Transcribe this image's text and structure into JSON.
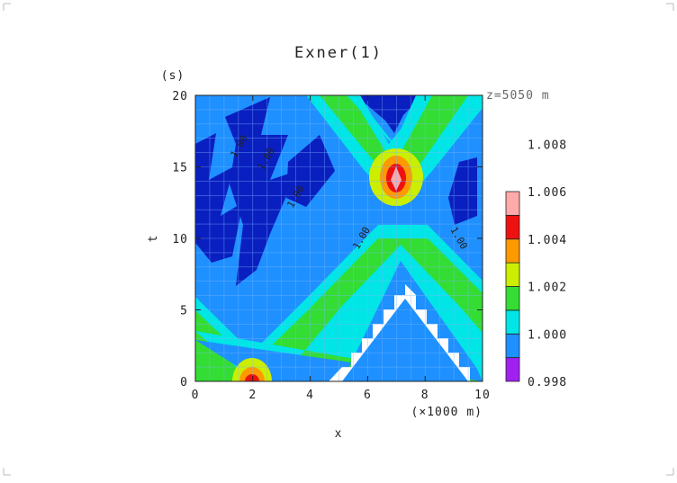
{
  "chart_data": {
    "type": "heatmap",
    "title": "Exner(1)",
    "xlabel": "x",
    "ylabel": "t",
    "x_unit": "(×1000 m)",
    "y_unit": "(s)",
    "annotation": "z=5050 m",
    "xlim": [
      0,
      10
    ],
    "ylim": [
      0,
      20
    ],
    "x_ticks": [
      "0",
      "2",
      "4",
      "6",
      "8",
      "10"
    ],
    "y_ticks": [
      "0",
      "5",
      "10",
      "15",
      "20"
    ],
    "contour_labels": [
      "1.00",
      "1.00",
      "1.00",
      "1.00",
      "1.00"
    ],
    "colorbar": {
      "levels": [
        "0.998",
        "1.000",
        "1.002",
        "1.004",
        "1.006",
        "1.008"
      ],
      "colors": [
        "#a020f0",
        "#1e90ff",
        "#00e5e5",
        "#33dd33",
        "#ccee00",
        "#ff9900",
        "#ee1111",
        "#ffaaaa"
      ]
    }
  }
}
